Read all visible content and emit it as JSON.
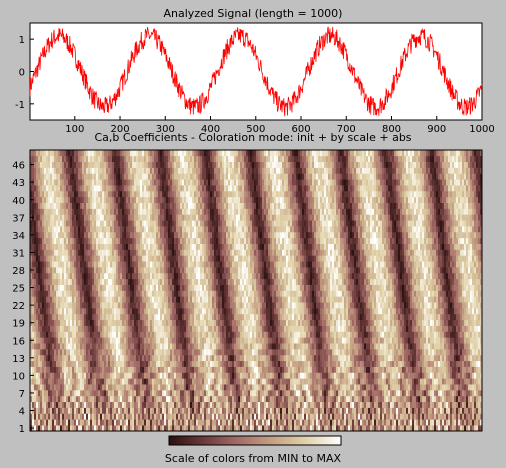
{
  "figure": {
    "background": "#c0c0c0",
    "signal_color": "#ff0000"
  },
  "chart_data": [
    {
      "type": "line",
      "title": "Analyzed Signal (length = 1000)",
      "xlabel": "",
      "ylabel": "",
      "xlim": [
        1,
        1000
      ],
      "ylim": [
        -1.5,
        1.5
      ],
      "x_ticks": [
        100,
        200,
        300,
        400,
        500,
        600,
        700,
        800,
        900,
        1000
      ],
      "y_ticks": [
        -1,
        0,
        1
      ],
      "series": [
        {
          "description_visible": false,
          "length": 1000,
          "shape": "sinusoid with additive high-frequency noise",
          "period_samples": 200,
          "amplitude": 1.1,
          "noise_amplitude": 0.3
        }
      ],
      "grid": false
    },
    {
      "type": "heatmap",
      "title": "Ca,b Coefficients - Coloration mode: init + by scale + abs",
      "x_range": [
        1,
        1000
      ],
      "y_ticks": [
        1,
        4,
        7,
        10,
        13,
        16,
        19,
        22,
        25,
        28,
        31,
        34,
        37,
        40,
        43,
        46
      ],
      "y_tick_labels": [
        "1",
        "4",
        "7",
        "10",
        "13",
        "16",
        "19",
        "22",
        "25",
        "28",
        "31",
        "34",
        "37",
        "40",
        "43",
        "46"
      ],
      "scales": [
        1,
        48
      ],
      "colormap": "pink",
      "colorbar": {
        "label": "Scale of colors from MIN to MAX",
        "colors": [
          "#2a1111",
          "#6b3a3a",
          "#a36c68",
          "#c4a082",
          "#e2d4ac",
          "#ffffff"
        ]
      }
    }
  ]
}
